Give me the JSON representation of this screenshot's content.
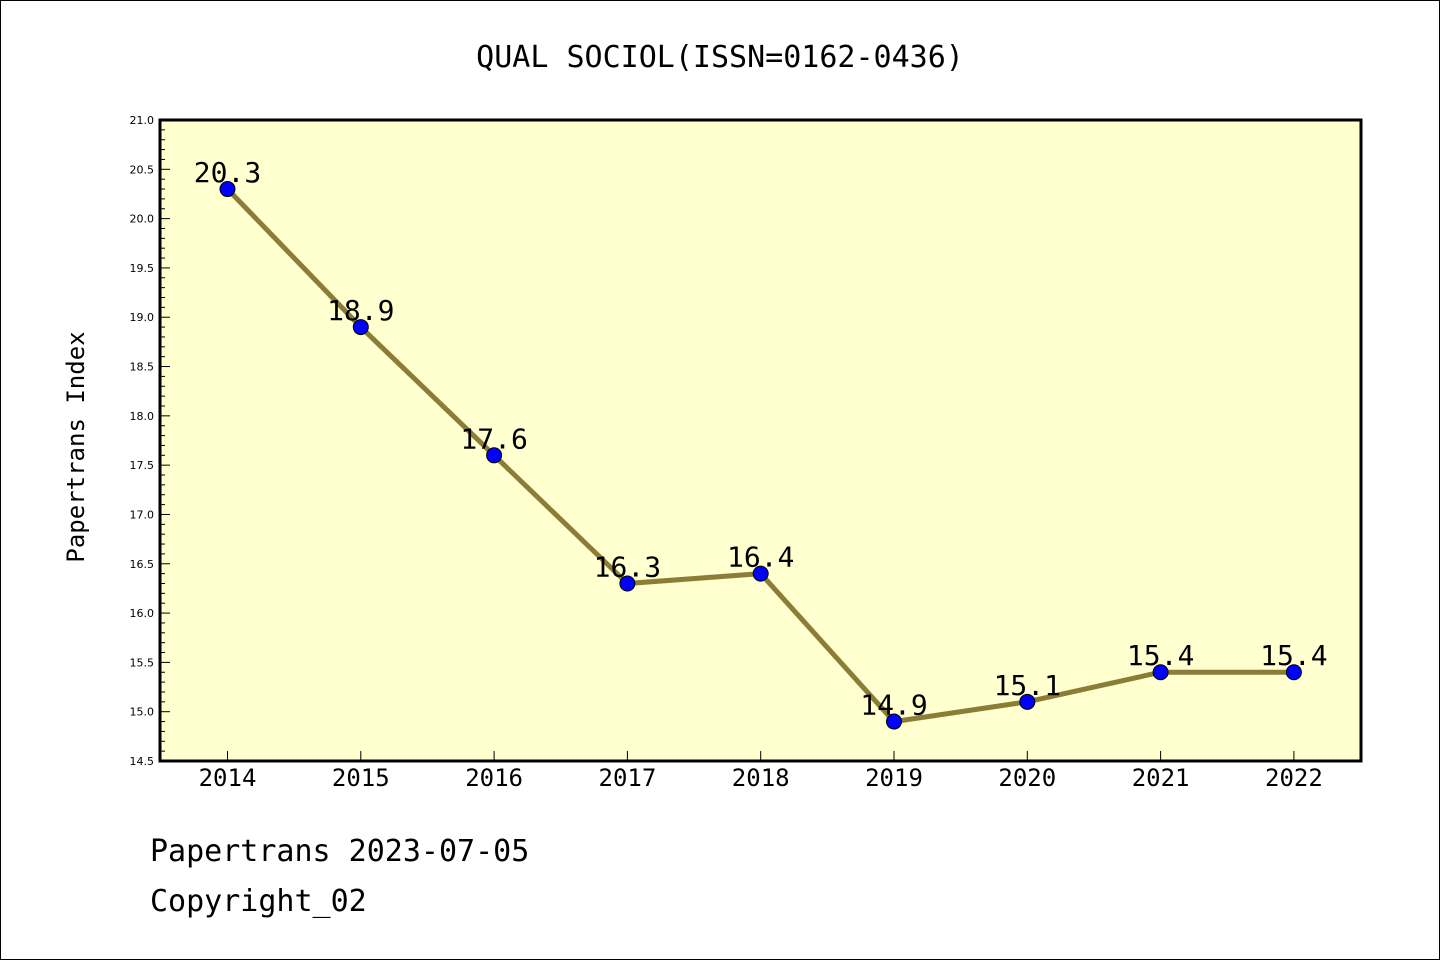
{
  "chart_data": {
    "type": "line",
    "title": "QUAL SOCIOL(ISSN=0162-0436)",
    "xlabel": "",
    "ylabel": "Papertrans Index",
    "categories": [
      "2014",
      "2015",
      "2016",
      "2017",
      "2018",
      "2019",
      "2020",
      "2021",
      "2022"
    ],
    "series": [
      {
        "values": [
          20.3,
          18.9,
          17.6,
          16.3,
          16.4,
          14.9,
          15.1,
          15.4,
          15.4
        ]
      }
    ],
    "data_labels": [
      "20.3",
      "18.9",
      "17.6",
      "16.3",
      "16.4",
      "14.9",
      "15.1",
      "15.4",
      "15.4"
    ],
    "ylim": [
      14.5,
      21.0
    ],
    "yticks": [
      "14.5",
      "15.0",
      "15.5",
      "16.0",
      "16.5",
      "17.0",
      "17.5",
      "18.0",
      "18.5",
      "19.0",
      "19.5",
      "20.0",
      "20.5",
      "21.0"
    ],
    "grid": false,
    "colors": {
      "plot_background": "#ffffd0",
      "line": "#8b7d35",
      "marker": "#0000ff"
    }
  },
  "footer": {
    "line1": "Papertrans 2023-07-05",
    "line2": "Copyright_02"
  }
}
